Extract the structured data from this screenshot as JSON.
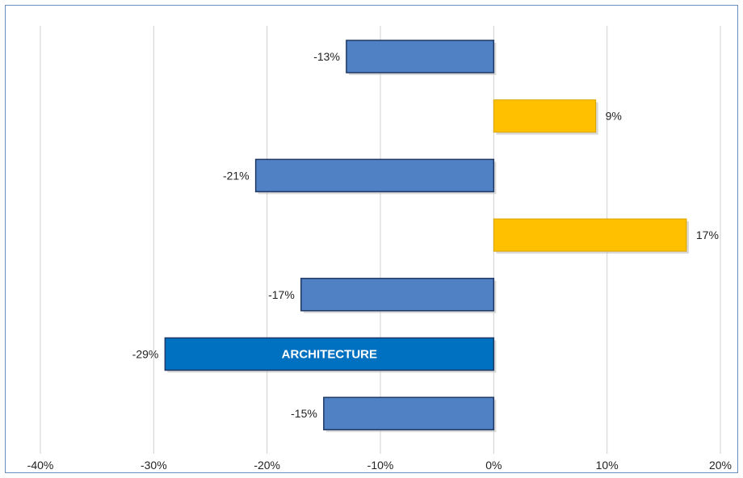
{
  "chart_data": {
    "type": "bar",
    "orientation": "horizontal",
    "xlim": [
      -40,
      20
    ],
    "x_ticks": [
      -40,
      -30,
      -20,
      -10,
      0,
      10,
      20
    ],
    "x_tick_labels": [
      "-40%",
      "-30%",
      "-20%",
      "-10%",
      "0%",
      "10%",
      "20%"
    ],
    "grid": "vertical",
    "bars": [
      {
        "value": -13,
        "label": "-13%",
        "color": "#4f81c4"
      },
      {
        "value": 9,
        "label": "9%",
        "color": "#ffc000"
      },
      {
        "value": -21,
        "label": "-21%",
        "color": "#4f81c4"
      },
      {
        "value": 17,
        "label": "17%",
        "color": "#ffc000"
      },
      {
        "value": -17,
        "label": "-17%",
        "color": "#4f81c4"
      },
      {
        "value": -29,
        "label": "-29%",
        "color": "#0070c0",
        "annotation": "ARCHITECTURE"
      },
      {
        "value": -15,
        "label": "-15%",
        "color": "#4f81c4"
      }
    ]
  },
  "colors": {
    "border": "#6a8fc0",
    "gridline": "#d0d0d0",
    "bar_outline": "#1f3864"
  }
}
